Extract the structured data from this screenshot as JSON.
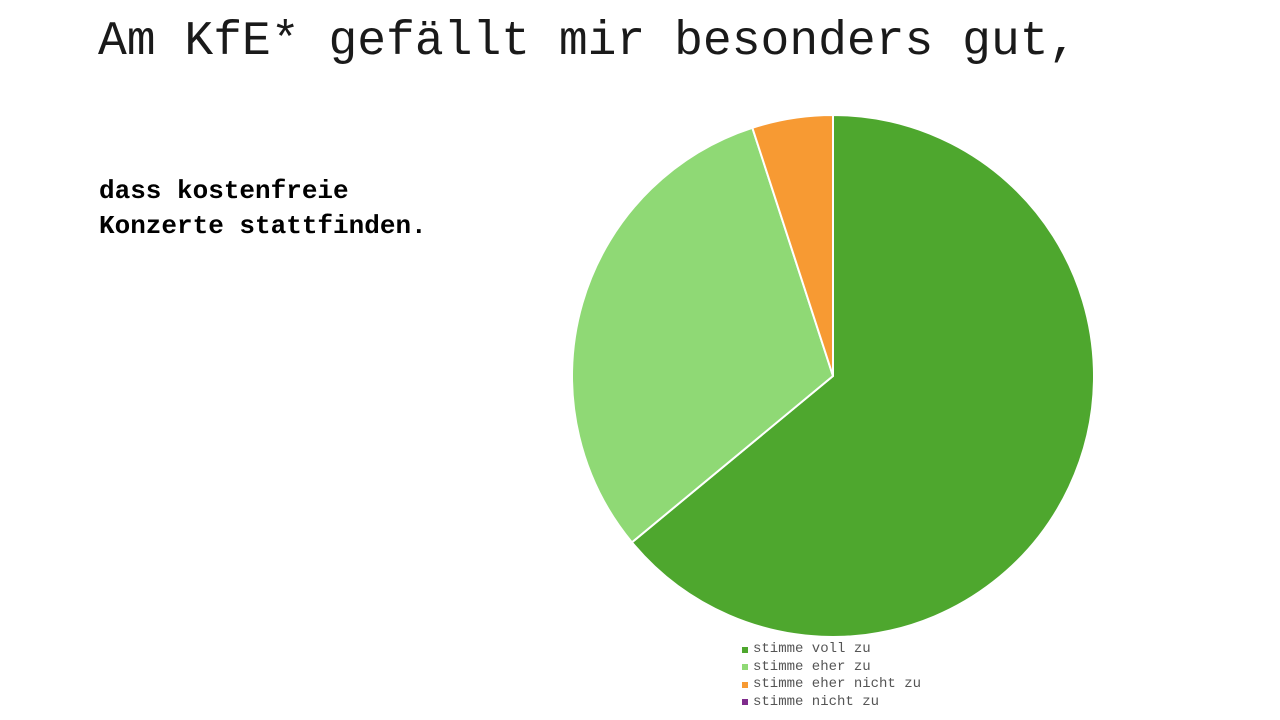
{
  "slide": {
    "title": "Am KfE* gefällt mir besonders gut,",
    "subtitle": "dass kostenfreie Konzerte stattfinden."
  },
  "chart_data": {
    "type": "pie",
    "categories": [
      "stimme voll zu",
      "stimme eher zu",
      "stimme eher nicht zu",
      "stimme nicht zu"
    ],
    "values": [
      64,
      31,
      5,
      0
    ],
    "colors": [
      "#4ea72e",
      "#8fd975",
      "#f79a33",
      "#7f2b8c"
    ],
    "title": "",
    "legend": "bottom",
    "start_angle_deg": 0,
    "direction": "clockwise"
  }
}
